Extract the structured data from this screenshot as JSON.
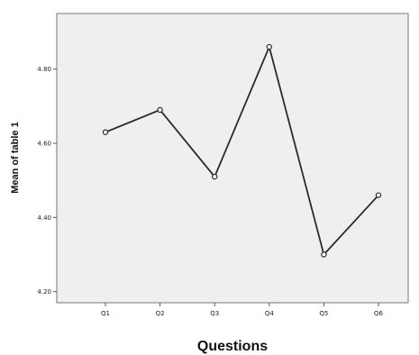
{
  "chart_data": {
    "type": "line",
    "title": "",
    "xlabel": "Questions",
    "ylabel": "Mean of table 1",
    "categories": [
      "Q1",
      "Q2",
      "Q3",
      "Q4",
      "Q5",
      "Q6"
    ],
    "values": [
      4.63,
      4.69,
      4.51,
      4.86,
      4.3,
      4.46
    ],
    "ylim": [
      4.17,
      4.95
    ],
    "y_ticks": [
      "4.20",
      "4.40",
      "4.60",
      "4.80"
    ],
    "grid": false,
    "legend": "none",
    "colors": {
      "plot_background": "#efefef",
      "line": "#2b2b2b",
      "marker_fill": "#ffffff",
      "axis": "#555555"
    }
  }
}
